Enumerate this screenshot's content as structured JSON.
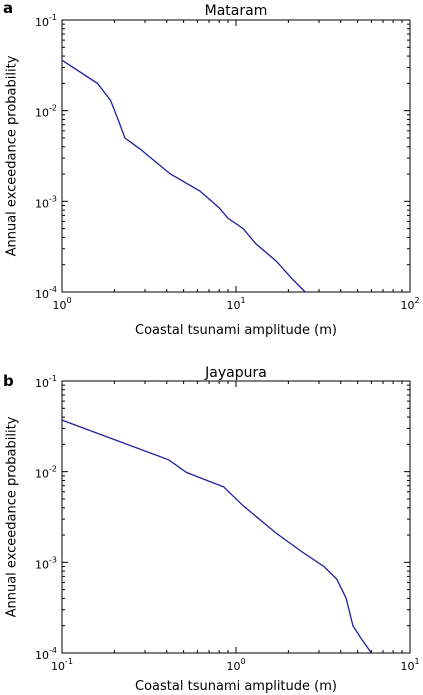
{
  "chart_data": [
    {
      "type": "line",
      "panel": "a",
      "title": "Mataram",
      "xlabel": "Coastal tsunami amplitude (m)",
      "ylabel": "Annual exceedance probability",
      "xscale": "log",
      "yscale": "log",
      "xlim": [
        1,
        100
      ],
      "ylim": [
        0.0001,
        0.1
      ],
      "x_ticks": [
        {
          "base": "10",
          "exp": "0"
        },
        {
          "base": "10",
          "exp": "1"
        },
        {
          "base": "10",
          "exp": "2"
        }
      ],
      "y_ticks": [
        {
          "base": "10",
          "exp": "-4"
        },
        {
          "base": "10",
          "exp": "-3"
        },
        {
          "base": "10",
          "exp": "-2"
        },
        {
          "base": "10",
          "exp": "-1"
        }
      ],
      "grid": false,
      "series": [
        {
          "x": [
            1.0,
            1.6,
            1.9,
            2.1,
            2.3,
            2.8,
            4.2,
            6.2,
            8.0,
            9.0,
            11.0,
            13.0,
            17.0,
            21.0,
            25.0
          ],
          "y": [
            0.036,
            0.02,
            0.013,
            0.008,
            0.005,
            0.0038,
            0.002,
            0.0013,
            0.00085,
            0.00065,
            0.0005,
            0.00034,
            0.00022,
            0.00014,
            0.0001
          ]
        }
      ]
    },
    {
      "type": "line",
      "panel": "b",
      "title": "Jayapura",
      "xlabel": "Coastal tsunami amplitude (m)",
      "ylabel": "Annual exceedance probability",
      "xscale": "log",
      "yscale": "log",
      "xlim": [
        0.1,
        10
      ],
      "ylim": [
        0.0001,
        0.1
      ],
      "x_ticks": [
        {
          "base": "10",
          "exp": "-1"
        },
        {
          "base": "10",
          "exp": "0"
        },
        {
          "base": "10",
          "exp": "1"
        }
      ],
      "y_ticks": [
        {
          "base": "10",
          "exp": "-4"
        },
        {
          "base": "10",
          "exp": "-3"
        },
        {
          "base": "10",
          "exp": "-2"
        },
        {
          "base": "10",
          "exp": "-1"
        }
      ],
      "grid": false,
      "series": [
        {
          "x": [
            0.1,
            0.41,
            0.52,
            0.85,
            1.1,
            1.7,
            2.4,
            3.2,
            3.8,
            4.3,
            4.7,
            5.3,
            6.0
          ],
          "y": [
            0.037,
            0.0135,
            0.0098,
            0.0068,
            0.0042,
            0.0021,
            0.0013,
            0.0009,
            0.00065,
            0.0004,
            0.0002,
            0.00014,
            0.0001
          ]
        }
      ]
    }
  ]
}
